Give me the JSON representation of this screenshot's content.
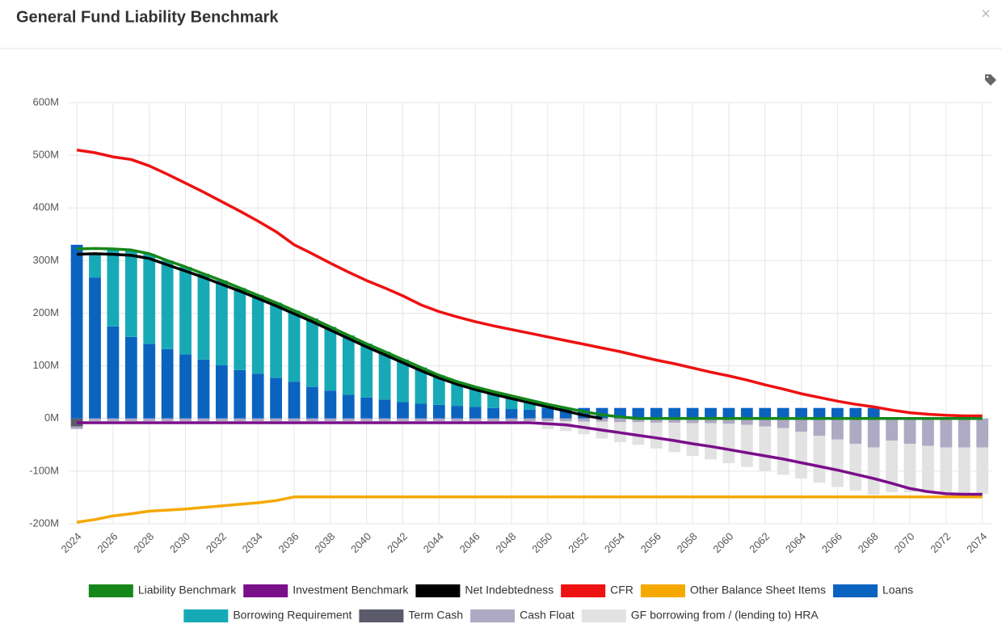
{
  "dialog": {
    "close": "×"
  },
  "chart_data": {
    "type": "bar",
    "title": "General Fund Liability Benchmark",
    "x": [
      2024,
      2025,
      2026,
      2027,
      2028,
      2029,
      2030,
      2031,
      2032,
      2033,
      2034,
      2035,
      2036,
      2037,
      2038,
      2039,
      2040,
      2041,
      2042,
      2043,
      2044,
      2045,
      2046,
      2047,
      2048,
      2049,
      2050,
      2051,
      2052,
      2053,
      2054,
      2055,
      2056,
      2057,
      2058,
      2059,
      2060,
      2061,
      2062,
      2063,
      2064,
      2065,
      2066,
      2067,
      2068,
      2069,
      2070,
      2071,
      2072,
      2073,
      2074
    ],
    "xlim": [
      2023.55,
      2074.55
    ],
    "xticks": [
      2024,
      2026,
      2028,
      2030,
      2032,
      2034,
      2036,
      2038,
      2040,
      2042,
      2044,
      2046,
      2048,
      2050,
      2052,
      2054,
      2056,
      2058,
      2060,
      2062,
      2064,
      2066,
      2068,
      2070,
      2072,
      2074
    ],
    "ylim": [
      -200,
      600
    ],
    "yticks": [
      {
        "value": -200,
        "label": "-200M"
      },
      {
        "value": -100,
        "label": "-100M"
      },
      {
        "value": 0,
        "label": "0M"
      },
      {
        "value": 100,
        "label": "100M"
      },
      {
        "value": 200,
        "label": "200M"
      },
      {
        "value": 300,
        "label": "300M"
      },
      {
        "value": 400,
        "label": "400M"
      },
      {
        "value": 500,
        "label": "500M"
      },
      {
        "value": 600,
        "label": "600M"
      }
    ],
    "grid": true,
    "series": [
      {
        "name": "Liability Benchmark",
        "type": "line",
        "color": "#15871a",
        "values": [
          322,
          323,
          322,
          320,
          313,
          300,
          288,
          275,
          262,
          248,
          234,
          220,
          205,
          190,
          174,
          158,
          142,
          127,
          112,
          97,
          82,
          70,
          60,
          51,
          43,
          35,
          27,
          20,
          13,
          7,
          3,
          0,
          0,
          0,
          0,
          0,
          0,
          0,
          0,
          0,
          0,
          0,
          0,
          0,
          0,
          0,
          0,
          0,
          0,
          0,
          0
        ]
      },
      {
        "name": "Investment Benchmark",
        "type": "line",
        "color": "#7a0f8a",
        "values": [
          -8,
          -8,
          -8,
          -8,
          -8,
          -8,
          -8,
          -8,
          -8,
          -8,
          -8,
          -8,
          -8,
          -8,
          -8,
          -8,
          -8,
          -8,
          -8,
          -8,
          -8,
          -8,
          -8,
          -8,
          -8,
          -8,
          -10,
          -12,
          -17,
          -22,
          -27,
          -32,
          -37,
          -42,
          -48,
          -53,
          -59,
          -65,
          -71,
          -77,
          -84,
          -91,
          -98,
          -106,
          -114,
          -123,
          -133,
          -139,
          -143,
          -144,
          -144
        ]
      },
      {
        "name": "Net Indebtedness",
        "type": "line",
        "color": "#000000",
        "values": [
          312,
          313,
          312,
          310,
          304,
          292,
          280,
          268,
          255,
          242,
          228,
          214,
          199,
          184,
          168,
          152,
          136,
          121,
          106,
          91,
          77,
          65,
          55,
          46,
          38,
          30,
          22,
          14,
          6,
          0,
          null,
          null,
          null,
          null,
          null,
          null,
          null,
          null,
          null,
          null,
          null,
          null,
          null,
          null,
          null,
          null,
          null,
          null,
          null,
          null,
          null
        ]
      },
      {
        "name": "CFR",
        "type": "line",
        "color": "#ee1111",
        "values": [
          510,
          505,
          497,
          492,
          480,
          464,
          447,
          430,
          412,
          394,
          375,
          355,
          330,
          313,
          295,
          278,
          262,
          248,
          233,
          216,
          203,
          193,
          184,
          176,
          169,
          162,
          155,
          148,
          141,
          134,
          127,
          119,
          111,
          104,
          96,
          88,
          81,
          73,
          64,
          56,
          47,
          40,
          33,
          27,
          22,
          16,
          11,
          8,
          6,
          5,
          5
        ]
      },
      {
        "name": "Other Balance Sheet Items",
        "type": "line",
        "color": "#f5a800",
        "values": [
          -197,
          -192,
          -185,
          -181,
          -176,
          -174,
          -172,
          -169,
          -166,
          -163,
          -160,
          -156,
          -149,
          -149,
          -149,
          -149,
          -149,
          -149,
          -149,
          -149,
          -149,
          -149,
          -149,
          -149,
          -149,
          -149,
          -149,
          -149,
          -149,
          -149,
          -149,
          -149,
          -149,
          -149,
          -149,
          -149,
          -149,
          -149,
          -149,
          -149,
          -149,
          -149,
          -149,
          -149,
          -149,
          -149,
          -149,
          -149,
          -149,
          -149,
          -149
        ]
      },
      {
        "name": "Loans",
        "type": "bar",
        "color": "#0b63c0",
        "values": [
          330,
          268,
          175,
          155,
          142,
          132,
          122,
          112,
          101,
          92,
          85,
          77,
          70,
          60,
          53,
          45,
          40,
          36,
          31,
          28,
          26,
          24,
          22,
          20,
          18,
          17,
          20,
          20,
          20,
          20,
          20,
          20,
          20,
          20,
          20,
          20,
          20,
          20,
          20,
          20,
          20,
          20,
          20,
          20,
          20,
          0,
          0,
          0,
          0,
          0,
          0
        ]
      },
      {
        "name": "Borrowing Requirement",
        "type": "bar",
        "color": "#17aab6",
        "values": [
          0,
          45,
          147,
          165,
          171,
          168,
          166,
          163,
          161,
          156,
          149,
          143,
          135,
          130,
          121,
          113,
          102,
          91,
          81,
          69,
          56,
          46,
          38,
          31,
          25,
          18,
          7,
          0,
          0,
          0,
          0,
          0,
          0,
          0,
          0,
          0,
          0,
          0,
          0,
          0,
          0,
          0,
          0,
          0,
          0,
          0,
          0,
          0,
          0,
          0,
          0
        ]
      },
      {
        "name": "Term Cash",
        "type": "bar",
        "color": "#5c5b6c",
        "values": [
          -15,
          0,
          0,
          0,
          0,
          0,
          0,
          0,
          0,
          0,
          0,
          0,
          0,
          0,
          0,
          0,
          0,
          0,
          0,
          0,
          0,
          0,
          0,
          0,
          0,
          0,
          0,
          0,
          0,
          0,
          0,
          0,
          0,
          0,
          0,
          0,
          0,
          0,
          0,
          0,
          0,
          0,
          0,
          0,
          0,
          0,
          0,
          0,
          0,
          0,
          0
        ]
      },
      {
        "name": "Cash Float",
        "type": "bar",
        "color": "#aeaac3",
        "values": [
          -5,
          -5,
          -5,
          -5,
          -5,
          -5,
          -5,
          -5,
          -5,
          -5,
          -5,
          -5,
          -5,
          -5,
          -5,
          -5,
          -5,
          -5,
          -5,
          -5,
          -5,
          -5,
          -5,
          -5,
          -5,
          -5,
          -5,
          -5,
          -6,
          -6,
          -7,
          -7,
          -8,
          -8,
          -9,
          -9,
          -10,
          -12,
          -15,
          -18,
          -25,
          -33,
          -40,
          -48,
          -55,
          -42,
          -48,
          -52,
          -55,
          -55,
          -55
        ]
      },
      {
        "name": "GF borrowing from / (lending to) HRA",
        "type": "bar",
        "color": "#e2e2e2",
        "values": [
          0,
          0,
          0,
          0,
          0,
          0,
          0,
          0,
          0,
          0,
          0,
          0,
          0,
          0,
          0,
          0,
          0,
          0,
          0,
          0,
          0,
          0,
          0,
          0,
          0,
          0,
          -15,
          -19,
          -24,
          -32,
          -38,
          -43,
          -49,
          -56,
          -62,
          -69,
          -75,
          -80,
          -85,
          -89,
          -89,
          -89,
          -90,
          -89,
          -90,
          -98,
          -92,
          -90,
          -88,
          -88,
          -88
        ]
      }
    ]
  }
}
